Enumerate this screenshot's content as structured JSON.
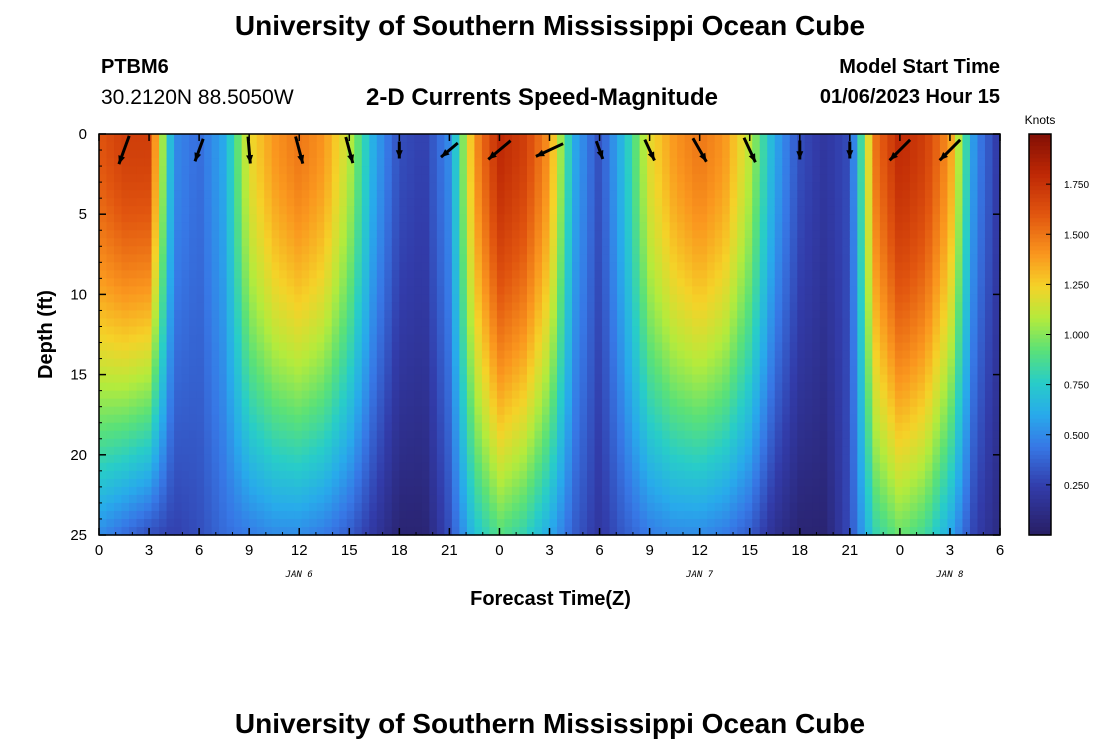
{
  "header": {
    "title": "University of Southern Mississippi Ocean Cube",
    "station": "PTBM6",
    "coords": "30.2120N  88.5050W",
    "subtitle": "2-D Currents Speed-Magnitude",
    "model_start_label": "Model Start Time",
    "model_start_value": "01/06/2023 Hour 15"
  },
  "footer": {
    "title": "University of Southern Mississippi Ocean Cube"
  },
  "chart_data": {
    "type": "heatmap",
    "xlabel": "Forecast Time(Z)",
    "ylabel": "Depth (ft)",
    "x_tick_labels": [
      "0",
      "3",
      "6",
      "9",
      "12",
      "15",
      "18",
      "21",
      "0",
      "3",
      "6",
      "9",
      "12",
      "15",
      "18",
      "21",
      "0",
      "3",
      "6"
    ],
    "x_tick_hours": [
      0,
      3,
      6,
      9,
      12,
      15,
      18,
      21,
      24,
      27,
      30,
      33,
      36,
      39,
      42,
      45,
      48,
      51,
      54
    ],
    "date_labels": [
      {
        "text": "JAN 6",
        "hour": 12
      },
      {
        "text": "JAN 7",
        "hour": 36
      },
      {
        "text": "JAN 8",
        "hour": 51
      }
    ],
    "xlim": [
      0,
      54
    ],
    "ylim": [
      0,
      25
    ],
    "y_inverted": true,
    "y_ticks": [
      0,
      5,
      10,
      15,
      20,
      25
    ],
    "colorbar": {
      "unit": "Knots",
      "range": [
        0,
        2.0
      ],
      "tick_values": [
        0.25,
        0.5,
        0.75,
        1.0,
        1.25,
        1.5,
        1.75
      ],
      "tick_labels": [
        "0.250",
        "0.500",
        "0.750",
        "1.000",
        "1.250",
        "1.500",
        "1.750"
      ]
    },
    "speed_profile_knots": {
      "hours": [
        0,
        1.5,
        3,
        4.5,
        6,
        7.5,
        9,
        10.5,
        12,
        13.5,
        15,
        16.5,
        18,
        19.5,
        21,
        22.5,
        24,
        25.5,
        27,
        28.5,
        30,
        31.5,
        33,
        34.5,
        36,
        37.5,
        39,
        40.5,
        42,
        43.5,
        45,
        46.5,
        48,
        49.5,
        51,
        52.5,
        54
      ],
      "surface": [
        1.6,
        1.7,
        1.7,
        0.5,
        0.4,
        0.6,
        1.2,
        1.4,
        1.5,
        1.4,
        1.1,
        0.6,
        0.3,
        0.25,
        0.5,
        1.4,
        1.8,
        1.7,
        1.4,
        0.6,
        0.3,
        0.7,
        1.2,
        1.4,
        1.5,
        1.4,
        1.1,
        0.6,
        0.3,
        0.2,
        0.3,
        1.5,
        1.8,
        1.7,
        1.4,
        0.5,
        0.2
      ],
      "bottom": [
        0.5,
        0.4,
        0.3,
        0.25,
        0.3,
        0.4,
        0.45,
        0.5,
        0.5,
        0.45,
        0.35,
        0.2,
        0.05,
        0.05,
        0.3,
        0.7,
        0.9,
        0.8,
        0.6,
        0.35,
        0.2,
        0.35,
        0.45,
        0.5,
        0.5,
        0.45,
        0.35,
        0.15,
        0.05,
        0.05,
        0.3,
        0.8,
        0.95,
        0.85,
        0.6,
        0.25,
        0.1
      ]
    },
    "vectors": [
      {
        "hour": 1.5,
        "depth": 1,
        "dir": 200,
        "speed": 1.6
      },
      {
        "hour": 6,
        "depth": 1,
        "dir": 200,
        "speed": 1.0
      },
      {
        "hour": 9,
        "depth": 1,
        "dir": 175,
        "speed": 1.3
      },
      {
        "hour": 12,
        "depth": 1,
        "dir": 165,
        "speed": 1.4
      },
      {
        "hour": 15,
        "depth": 1,
        "dir": 165,
        "speed": 1.3
      },
      {
        "hour": 18,
        "depth": 1,
        "dir": 180,
        "speed": 0.3
      },
      {
        "hour": 21,
        "depth": 1,
        "dir": 230,
        "speed": 0.8
      },
      {
        "hour": 24,
        "depth": 1,
        "dir": 230,
        "speed": 1.5
      },
      {
        "hour": 27,
        "depth": 1,
        "dir": 245,
        "speed": 1.6
      },
      {
        "hour": 30,
        "depth": 1,
        "dir": 160,
        "speed": 0.5
      },
      {
        "hour": 33,
        "depth": 1,
        "dir": 155,
        "speed": 0.9
      },
      {
        "hour": 36,
        "depth": 1,
        "dir": 150,
        "speed": 1.3
      },
      {
        "hour": 39,
        "depth": 1,
        "dir": 155,
        "speed": 1.3
      },
      {
        "hour": 42,
        "depth": 1,
        "dir": 180,
        "speed": 0.5
      },
      {
        "hour": 45,
        "depth": 1,
        "dir": 180,
        "speed": 0.3
      },
      {
        "hour": 48,
        "depth": 1,
        "dir": 225,
        "speed": 1.5
      },
      {
        "hour": 51,
        "depth": 1,
        "dir": 225,
        "speed": 1.5
      }
    ]
  }
}
